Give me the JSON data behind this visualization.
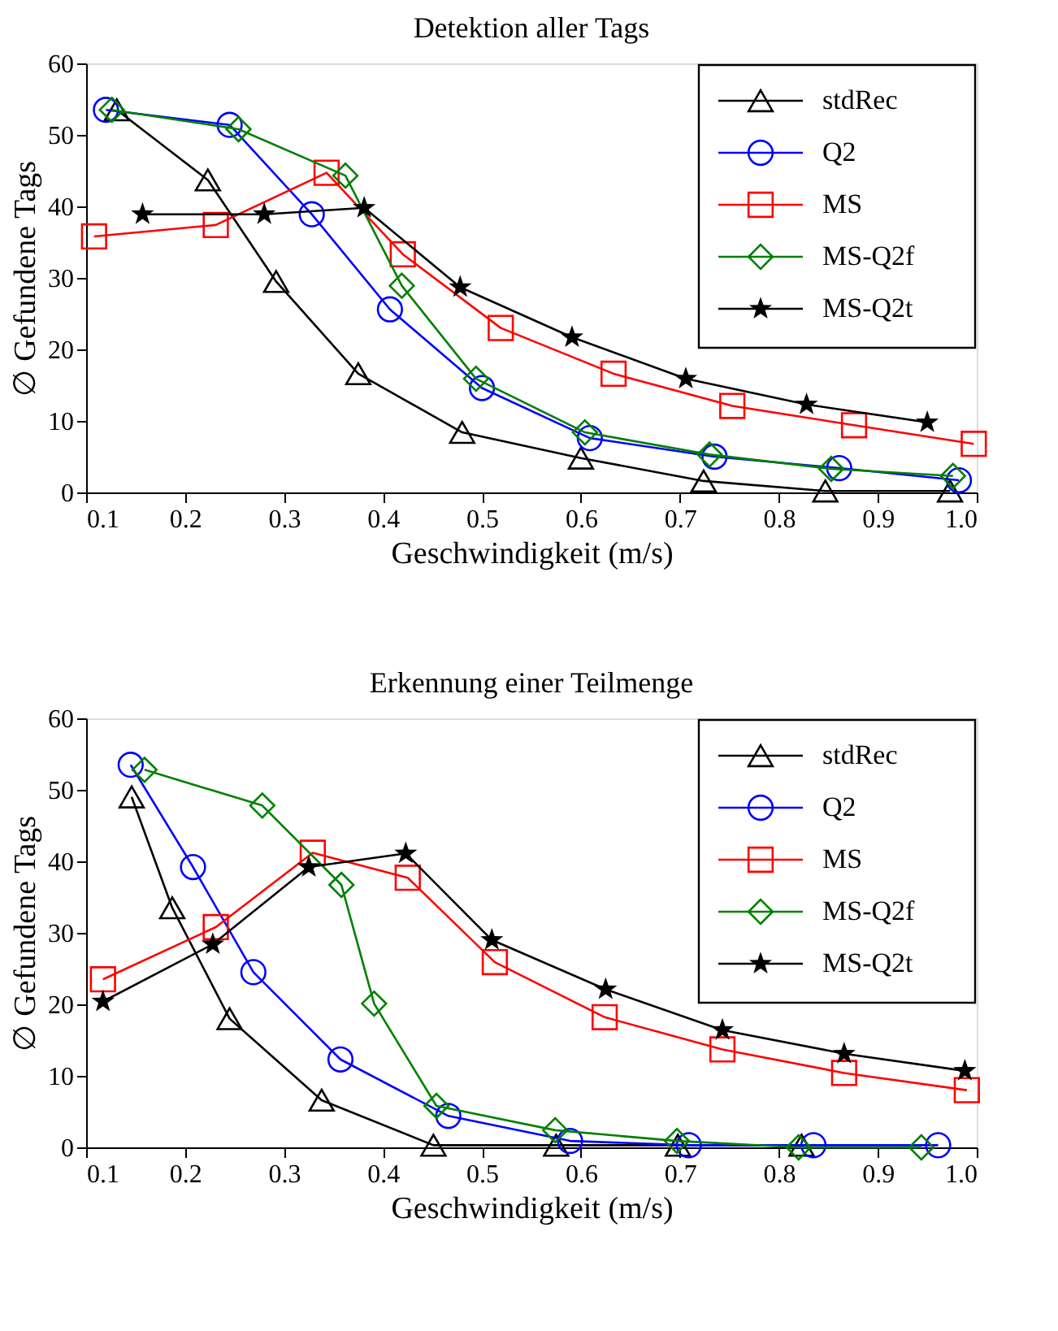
{
  "chart_data": [
    {
      "type": "line",
      "title": "Detektion aller Tags",
      "xlabel": "Geschwindigkeit (m/s)",
      "ylabel": "∅ Gefundene Tags",
      "xlim": [
        0.1,
        1.0
      ],
      "ylim": [
        0,
        60
      ],
      "xticks": [
        0.1,
        0.2,
        0.3,
        0.4,
        0.5,
        0.6,
        0.7,
        0.8,
        0.9,
        {
          "value": 1.0,
          "label": "1.0"
        }
      ],
      "yticks": [
        0,
        10,
        20,
        30,
        40,
        50,
        60
      ],
      "grid": false,
      "legend": "top right",
      "series": [
        {
          "name": "stdRec",
          "color": "#000000",
          "marker": "triangle",
          "x": [
            0.131,
            0.223,
            0.292,
            0.375,
            0.48,
            0.6,
            0.724,
            0.847,
            0.973
          ],
          "values": [
            53.5,
            43.7,
            29.5,
            16.6,
            8.4,
            4.8,
            1.6,
            0.2,
            0.2
          ]
        },
        {
          "name": "Q2",
          "color": "#0000ff",
          "marker": "circle",
          "x": [
            0.12,
            0.245,
            0.328,
            0.407,
            0.5,
            0.609,
            0.735,
            0.861,
            0.982
          ],
          "values": [
            53.5,
            51.4,
            38.9,
            25.6,
            14.6,
            7.6,
            5.0,
            3.4,
            1.7
          ]
        },
        {
          "name": "MS",
          "color": "#ff0000",
          "marker": "square",
          "x": [
            0.108,
            0.231,
            0.343,
            0.42,
            0.519,
            0.633,
            0.753,
            0.876,
            0.997
          ],
          "values": [
            35.8,
            37.4,
            44.7,
            33.3,
            23.0,
            16.6,
            12.1,
            9.4,
            6.8
          ]
        },
        {
          "name": "MS-Q2f",
          "color": "#008000",
          "marker": "diamond",
          "x": [
            0.126,
            0.254,
            0.362,
            0.419,
            0.494,
            0.604,
            0.73,
            0.853,
            0.976
          ],
          "values": [
            53.5,
            50.8,
            44.3,
            28.9,
            15.9,
            8.4,
            5.3,
            3.3,
            2.3
          ]
        },
        {
          "name": "MS-Q2t",
          "color": "#000000",
          "marker": "star",
          "x": [
            0.157,
            0.28,
            0.381,
            0.478,
            0.591,
            0.706,
            0.828,
            0.95
          ],
          "values": [
            38.9,
            38.9,
            39.8,
            28.7,
            21.7,
            15.9,
            12.3,
            9.8
          ]
        }
      ]
    },
    {
      "type": "line",
      "title": "Erkennung einer Teilmenge",
      "xlabel": "Geschwindigkeit (m/s)",
      "ylabel": "∅ Gefundene Tags",
      "xlim": [
        0.1,
        1.0
      ],
      "ylim": [
        0,
        60
      ],
      "xticks": [
        0.1,
        0.2,
        0.3,
        0.4,
        0.5,
        0.6,
        0.7,
        0.8,
        0.9,
        {
          "value": 1.0,
          "label": "1.0"
        }
      ],
      "yticks": [
        0,
        10,
        20,
        30,
        40,
        50,
        60
      ],
      "grid": false,
      "legend": "top right",
      "series": [
        {
          "name": "stdRec",
          "color": "#000000",
          "marker": "triangle",
          "x": [
            0.146,
            0.187,
            0.245,
            0.338,
            0.451,
            0.575,
            0.698,
            0.823
          ],
          "values": [
            49.0,
            33.5,
            18.0,
            6.6,
            0.3,
            0.3,
            0.3,
            0.3
          ]
        },
        {
          "name": "Q2",
          "color": "#0000ff",
          "marker": "circle",
          "x": [
            0.145,
            0.208,
            0.269,
            0.357,
            0.466,
            0.589,
            0.709,
            0.835,
            0.961
          ],
          "values": [
            53.5,
            39.2,
            24.5,
            12.3,
            4.4,
            0.9,
            0.3,
            0.3,
            0.3
          ]
        },
        {
          "name": "MS",
          "color": "#ff0000",
          "marker": "square",
          "x": [
            0.117,
            0.231,
            0.329,
            0.425,
            0.513,
            0.624,
            0.743,
            0.866,
            0.99
          ],
          "values": [
            23.5,
            30.8,
            41.2,
            37.7,
            25.9,
            18.2,
            13.7,
            10.4,
            8.0
          ]
        },
        {
          "name": "MS-Q2f",
          "color": "#008000",
          "marker": "diamond",
          "x": [
            0.159,
            0.278,
            0.358,
            0.391,
            0.454,
            0.574,
            0.697,
            0.82,
            0.944
          ],
          "values": [
            52.8,
            47.8,
            36.7,
            20.1,
            5.8,
            2.4,
            0.9,
            0.0,
            0.0
          ]
        },
        {
          "name": "MS-Q2t",
          "color": "#000000",
          "marker": "star",
          "x": [
            0.117,
            0.228,
            0.325,
            0.423,
            0.51,
            0.625,
            0.743,
            0.866,
            0.988
          ],
          "values": [
            20.4,
            28.4,
            39.2,
            41.1,
            29.0,
            22.1,
            16.4,
            13.1,
            10.7
          ]
        }
      ]
    }
  ]
}
